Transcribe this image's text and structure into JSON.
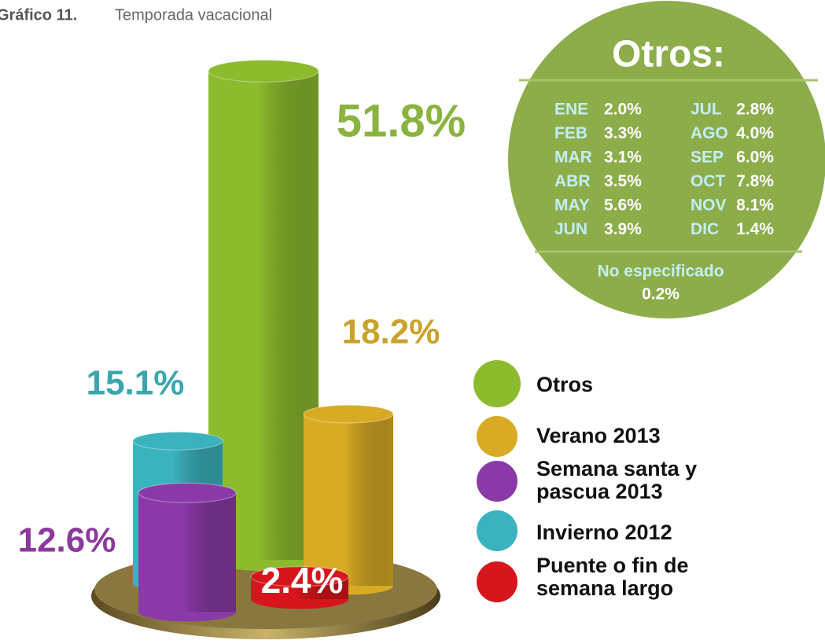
{
  "chart_data": {
    "type": "bar",
    "figure_label": "Gráfico 11.",
    "title": "Temporada vacacional",
    "categories": [
      "Otros",
      "Verano 2013",
      "Semana santa y pascua 2013",
      "Invierno 2012",
      "Puente o fin de semana largo"
    ],
    "values": [
      51.8,
      18.2,
      12.6,
      15.1,
      2.4
    ],
    "value_labels": [
      "51.8%",
      "18.2%",
      "12.6%",
      "15.1%",
      "2.4%"
    ],
    "colors": [
      "#8dbb2e",
      "#d9ab25",
      "#8a3aa8",
      "#3bb3bf",
      "#d6161c"
    ],
    "inset": {
      "title": "Otros:",
      "items": [
        {
          "label": "ENE",
          "value": "2.0%"
        },
        {
          "label": "FEB",
          "value": "3.3%"
        },
        {
          "label": "MAR",
          "value": "3.1%"
        },
        {
          "label": "ABR",
          "value": "3.5%"
        },
        {
          "label": "MAY",
          "value": "5.6%"
        },
        {
          "label": "JUN",
          "value": "3.9%"
        },
        {
          "label": "JUL",
          "value": "2.8%"
        },
        {
          "label": "AGO",
          "value": "4.0%"
        },
        {
          "label": "SEP",
          "value": "6.0%"
        },
        {
          "label": "OCT",
          "value": "7.8%"
        },
        {
          "label": "NOV",
          "value": "8.1%"
        },
        {
          "label": "DIC",
          "value": "1.4%"
        }
      ],
      "note_label": "No especificado",
      "note_value": "0.2%"
    }
  }
}
